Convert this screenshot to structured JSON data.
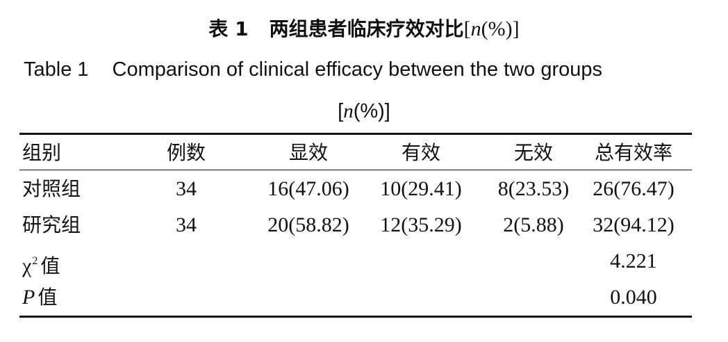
{
  "caption": {
    "cn_number": "表 1",
    "cn_title": "两组患者临床疗效对比",
    "cn_bracket_open": "[",
    "cn_n": "n",
    "cn_bracket_close": "(%)]",
    "en_number": "Table 1",
    "en_title": "Comparison of clinical efficacy between the two groups",
    "en_bracket_open": "[",
    "en_n": "n",
    "en_bracket_close": "(%)]"
  },
  "table": {
    "headers": [
      "组别",
      "例数",
      "显效",
      "有效",
      "无效",
      "总有效率"
    ],
    "rows": [
      [
        "对照组",
        "34",
        "16(47.06)",
        "10(29.41)",
        "8(23.53)",
        "26(76.47)"
      ],
      [
        "研究组",
        "34",
        "20(58.82)",
        "12(35.29)",
        "2(5.88)",
        "32(94.12)"
      ]
    ],
    "stats": [
      {
        "symbol": "χ",
        "superscript": "2",
        "label": "值",
        "value": "4.221"
      },
      {
        "symbol": "P",
        "superscript": "",
        "label": "值",
        "value": "0.040"
      }
    ]
  }
}
